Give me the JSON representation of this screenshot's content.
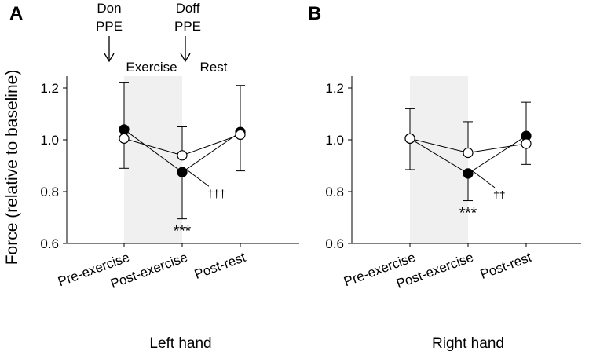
{
  "figure": {
    "y_axis_label": "Force (relative to baseline)",
    "annotations": {
      "don_line1": "Don",
      "don_line2": "PPE",
      "doff_line1": "Doff",
      "doff_line2": "PPE",
      "exercise": "Exercise",
      "rest": "Rest"
    }
  },
  "colors": {
    "axis": "#000000",
    "shade": "#f0f0f0",
    "filled_marker": "#000000",
    "open_marker": "#ffffff"
  },
  "chart_data": [
    {
      "type": "line",
      "panel_label": "A",
      "xlabel": "Left hand",
      "ylabel": "Force (relative to baseline)",
      "categories": [
        "Pre-exercise",
        "Post-exercise",
        "Post-rest"
      ],
      "ylim": [
        0.6,
        1.25
      ],
      "yticks": [
        "0.6",
        "0.8",
        "1.0",
        "1.2"
      ],
      "shaded_region": [
        "Pre-exercise",
        "Post-exercise"
      ],
      "series": [
        {
          "name": "filled",
          "marker": "filled",
          "values": [
            1.04,
            0.875,
            1.03
          ],
          "err_lower": [
            0.89,
            0.695,
            null
          ],
          "err_upper": [
            null,
            null,
            null
          ]
        },
        {
          "name": "open",
          "marker": "open",
          "values": [
            1.005,
            0.94,
            1.02
          ],
          "err_lower": [
            null,
            null,
            0.88
          ],
          "err_upper": [
            1.22,
            1.05,
            1.21
          ]
        }
      ],
      "significance": {
        "category": "Post-exercise",
        "label": "***"
      },
      "dagger": {
        "label": "†††"
      }
    },
    {
      "type": "line",
      "panel_label": "B",
      "xlabel": "Right hand",
      "ylabel": "",
      "categories": [
        "Pre-exercise",
        "Post-exercise",
        "Post-rest"
      ],
      "ylim": [
        0.6,
        1.25
      ],
      "yticks": [
        "0.6",
        "0.8",
        "1.0",
        "1.2"
      ],
      "shaded_region": [
        "Pre-exercise",
        "Post-exercise"
      ],
      "series": [
        {
          "name": "filled",
          "marker": "filled",
          "values": [
            1.005,
            0.87,
            1.015
          ],
          "err_lower": [
            0.885,
            0.765,
            null
          ],
          "err_upper": [
            null,
            null,
            null
          ]
        },
        {
          "name": "open",
          "marker": "open",
          "values": [
            1.005,
            0.95,
            0.985
          ],
          "err_lower": [
            null,
            null,
            0.905
          ],
          "err_upper": [
            1.12,
            1.07,
            1.145
          ]
        }
      ],
      "significance": {
        "category": "Post-exercise",
        "label": "***"
      },
      "dagger": {
        "label": "††"
      }
    }
  ]
}
